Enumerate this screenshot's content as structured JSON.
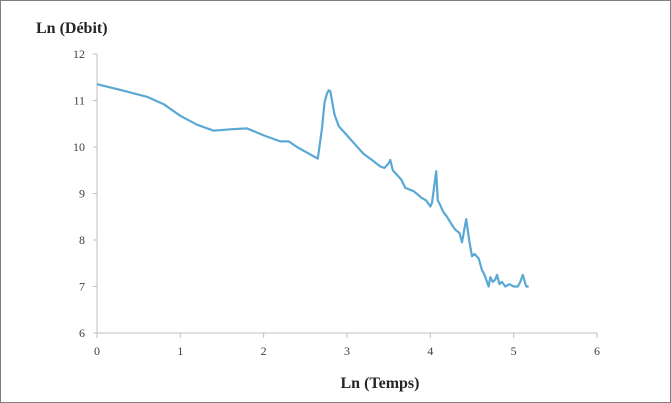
{
  "chart_data": {
    "type": "line",
    "title": "",
    "ylabel": "Ln (Débit)",
    "xlabel": "Ln (Temps)",
    "xlim": [
      0,
      6
    ],
    "ylim": [
      6,
      12
    ],
    "xticks": [
      "0",
      "1",
      "2",
      "3",
      "4",
      "5",
      "6"
    ],
    "yticks": [
      "6",
      "7",
      "8",
      "9",
      "10",
      "11",
      "12"
    ],
    "grid": false,
    "legend": "none",
    "line_color": "#5aa8d4",
    "series": [
      {
        "x": [
          0,
          0.3,
          0.6,
          0.8,
          1.0,
          1.2,
          1.4,
          1.6,
          1.8,
          2.0,
          2.2,
          2.3,
          2.4,
          2.5,
          2.65,
          2.7,
          2.73,
          2.76,
          2.78,
          2.8,
          2.85,
          2.9,
          3.0,
          3.1,
          3.2,
          3.3,
          3.4,
          3.45,
          3.5,
          3.52,
          3.55,
          3.6,
          3.65,
          3.7,
          3.8,
          3.9,
          3.95,
          4.0,
          4.02,
          4.05,
          4.07,
          4.09,
          4.12,
          4.15,
          4.2,
          4.25,
          4.3,
          4.35,
          4.38,
          4.41,
          4.43,
          4.47,
          4.5,
          4.53,
          4.58,
          4.62,
          4.65,
          4.7,
          4.72,
          4.75,
          4.78,
          4.8,
          4.83,
          4.86,
          4.9,
          4.95,
          5.0,
          5.05,
          5.08,
          5.11,
          5.15,
          5.18
        ],
        "y": [
          11.35,
          11.22,
          11.08,
          10.92,
          10.67,
          10.48,
          10.35,
          10.38,
          10.4,
          10.25,
          10.12,
          10.12,
          10.0,
          9.9,
          9.75,
          10.4,
          10.95,
          11.15,
          11.22,
          11.2,
          10.7,
          10.45,
          10.25,
          10.05,
          9.85,
          9.72,
          9.58,
          9.55,
          9.65,
          9.72,
          9.5,
          9.4,
          9.3,
          9.12,
          9.05,
          8.9,
          8.85,
          8.72,
          8.8,
          9.2,
          9.48,
          8.85,
          8.75,
          8.62,
          8.5,
          8.35,
          8.22,
          8.15,
          7.95,
          8.25,
          8.45,
          7.95,
          7.65,
          7.7,
          7.6,
          7.35,
          7.25,
          7.0,
          7.2,
          7.1,
          7.15,
          7.25,
          7.05,
          7.1,
          7.0,
          7.05,
          7.0,
          7.0,
          7.1,
          7.25,
          7.0,
          7.0
        ]
      }
    ]
  }
}
